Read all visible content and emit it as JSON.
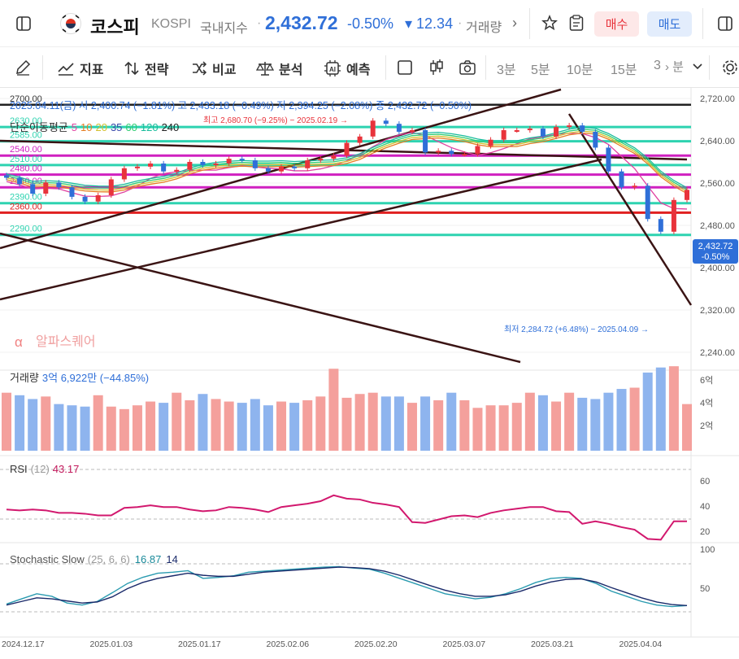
{
  "header": {
    "name": "코스피",
    "code": "KOSPI",
    "market": "국내지수",
    "price": "2,432.72",
    "change_pct": "-0.50%",
    "change_abs": "▾ 12.34",
    "volume_label": "거래량",
    "buy": "매수",
    "sell": "매도"
  },
  "toolbar": {
    "indicators": "지표",
    "strategy": "전략",
    "compare": "비교",
    "analysis": "분석",
    "forecast": "예측",
    "timeframes": [
      "3분",
      "5분",
      "10분",
      "15분",
      "3"
    ],
    "tf_more": "› 분"
  },
  "chart": {
    "info_line": "2025.04.11(금) 시 2,400.74 (−1.81%) 고 2,433.18 (−0.49%) 저 2,394.25 (−2.08%) 종 2,432.72 (−0.50%)",
    "ma_label": "단순이동평균",
    "ma_periods": [
      "5",
      "10",
      "20",
      "35",
      "60",
      "120",
      "240"
    ],
    "ma_colors": [
      "#e040a0",
      "#e67e22",
      "#d4c02e",
      "#3949ab",
      "#2ecc71",
      "#1abc9c",
      "#222222"
    ],
    "high_note": "최고 2,680.70 (−9.25%) − 2025.02.19 →",
    "low_note": "최저 2,284.72 (+6.48%) − 2025.04.09 →",
    "watermark": "알파스퀘어",
    "price_badge": "2,432.72",
    "price_badge_pct": "-0.50%",
    "y_ticks": [
      "2,720.00",
      "2,640.00",
      "2,560.00",
      "2,480.00",
      "2,400.00",
      "2,320.00",
      "2,240.00"
    ],
    "levels": [
      {
        "label": "2700.00",
        "color": "#222222"
      },
      {
        "label": "2630.00",
        "color": "#2ed3b0"
      },
      {
        "label": "2585.00",
        "color": "#2ed3b0"
      },
      {
        "label": "2540.00",
        "color": "#d020c0"
      },
      {
        "label": "2510.00",
        "color": "#2ed3b0"
      },
      {
        "label": "2480.00",
        "color": "#d020c0"
      },
      {
        "label": "2440.00",
        "color": "#d020c0"
      },
      {
        "label": "2390.00",
        "color": "#2ed3b0"
      },
      {
        "label": "2360.00",
        "color": "#e02020"
      },
      {
        "label": "2290.00",
        "color": "#2ed3b0"
      }
    ],
    "volume": {
      "label": "거래량",
      "value": "3억 6,922만 (−44.85%)",
      "ticks": [
        "6억",
        "4억",
        "2억"
      ]
    },
    "rsi": {
      "label": "RSI",
      "period": "(12)",
      "value": "43.17",
      "ticks": [
        "60",
        "40",
        "20"
      ]
    },
    "stoch": {
      "label": "Stochastic Slow",
      "params": "(25, 6, 6)",
      "k": "16.87",
      "d": "14",
      "ticks": [
        "100",
        "50"
      ]
    },
    "dates": [
      "2024.12.17",
      "2025.01.03",
      "2025.01.17",
      "2025.02.06",
      "2025.02.20",
      "2025.03.07",
      "2025.03.21",
      "2025.04.04"
    ],
    "colors": {
      "up": "#e8333b",
      "down": "#2f6fd8",
      "upVol": "#f4a09c",
      "downVol": "#8eb4ee"
    }
  }
}
